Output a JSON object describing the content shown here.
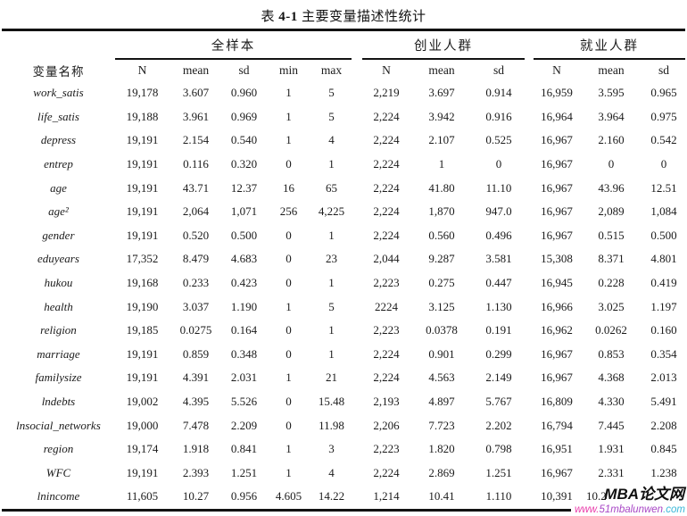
{
  "title": {
    "prefix": "表",
    "number": "4-1",
    "text": "主要变量描述性统计"
  },
  "table": {
    "var_col_header": "变量名称",
    "groups": [
      {
        "label": "全样本"
      },
      {
        "label": "创业人群"
      },
      {
        "label": "就业人群"
      }
    ],
    "sub_headers": [
      "N",
      "mean",
      "sd",
      "min",
      "max",
      "N",
      "mean",
      "sd",
      "N",
      "mean",
      "sd"
    ],
    "rows": [
      {
        "name": "work_satis",
        "values": [
          "19,178",
          "3.607",
          "0.960",
          "1",
          "5",
          "2,219",
          "3.697",
          "0.914",
          "16,959",
          "3.595",
          "0.965"
        ]
      },
      {
        "name": "life_satis",
        "values": [
          "19,188",
          "3.961",
          "0.969",
          "1",
          "5",
          "2,224",
          "3.942",
          "0.916",
          "16,964",
          "3.964",
          "0.975"
        ]
      },
      {
        "name": "depress",
        "values": [
          "19,191",
          "2.154",
          "0.540",
          "1",
          "4",
          "2,224",
          "2.107",
          "0.525",
          "16,967",
          "2.160",
          "0.542"
        ]
      },
      {
        "name": "entrep",
        "values": [
          "19,191",
          "0.116",
          "0.320",
          "0",
          "1",
          "2,224",
          "1",
          "0",
          "16,967",
          "0",
          "0"
        ]
      },
      {
        "name": "age",
        "values": [
          "19,191",
          "43.71",
          "12.37",
          "16",
          "65",
          "2,224",
          "41.80",
          "11.10",
          "16,967",
          "43.96",
          "12.51"
        ]
      },
      {
        "name": "age²",
        "values": [
          "19,191",
          "2,064",
          "1,071",
          "256",
          "4,225",
          "2,224",
          "1,870",
          "947.0",
          "16,967",
          "2,089",
          "1,084"
        ]
      },
      {
        "name": "gender",
        "values": [
          "19,191",
          "0.520",
          "0.500",
          "0",
          "1",
          "2,224",
          "0.560",
          "0.496",
          "16,967",
          "0.515",
          "0.500"
        ]
      },
      {
        "name": "eduyears",
        "values": [
          "17,352",
          "8.479",
          "4.683",
          "0",
          "23",
          "2,044",
          "9.287",
          "3.581",
          "15,308",
          "8.371",
          "4.801"
        ]
      },
      {
        "name": "hukou",
        "values": [
          "19,168",
          "0.233",
          "0.423",
          "0",
          "1",
          "2,223",
          "0.275",
          "0.447",
          "16,945",
          "0.228",
          "0.419"
        ]
      },
      {
        "name": "health",
        "values": [
          "19,190",
          "3.037",
          "1.190",
          "1",
          "5",
          "2224",
          "3.125",
          "1.130",
          "16,966",
          "3.025",
          "1.197"
        ]
      },
      {
        "name": "religion",
        "values": [
          "19,185",
          "0.0275",
          "0.164",
          "0",
          "1",
          "2,223",
          "0.0378",
          "0.191",
          "16,962",
          "0.0262",
          "0.160"
        ]
      },
      {
        "name": "marriage",
        "values": [
          "19,191",
          "0.859",
          "0.348",
          "0",
          "1",
          "2,224",
          "0.901",
          "0.299",
          "16,967",
          "0.853",
          "0.354"
        ]
      },
      {
        "name": "familysize",
        "values": [
          "19,191",
          "4.391",
          "2.031",
          "1",
          "21",
          "2,224",
          "4.563",
          "2.149",
          "16,967",
          "4.368",
          "2.013"
        ]
      },
      {
        "name": "lndebts",
        "values": [
          "19,002",
          "4.395",
          "5.526",
          "0",
          "15.48",
          "2,193",
          "4.897",
          "5.767",
          "16,809",
          "4.330",
          "5.491"
        ]
      },
      {
        "name": "lnsocial_networks",
        "values": [
          "19,000",
          "7.478",
          "2.209",
          "0",
          "11.98",
          "2,206",
          "7.723",
          "2.202",
          "16,794",
          "7.445",
          "2.208"
        ]
      },
      {
        "name": "region",
        "values": [
          "19,174",
          "1.918",
          "0.841",
          "1",
          "3",
          "2,223",
          "1.820",
          "0.798",
          "16,951",
          "1.931",
          "0.845"
        ]
      },
      {
        "name": "WFC",
        "values": [
          "19,191",
          "2.393",
          "1.251",
          "1",
          "4",
          "2,224",
          "2.869",
          "1.251",
          "16,967",
          "2.331",
          "1.238"
        ]
      },
      {
        "name": "lnincome",
        "values": [
          "11,605",
          "10.27",
          "0.956",
          "4.605",
          "14.22",
          "1,214",
          "10.41",
          "1.110",
          "10,391",
          "10.2",
          ""
        ]
      }
    ]
  },
  "watermark": {
    "brand": "MBA论文网",
    "url_parts": [
      {
        "text": "www.",
        "color": "#e93caa"
      },
      {
        "text": "51mbalunwen",
        "color": "#a847c6"
      },
      {
        "text": ".com",
        "color": "#39b7d8"
      }
    ]
  }
}
